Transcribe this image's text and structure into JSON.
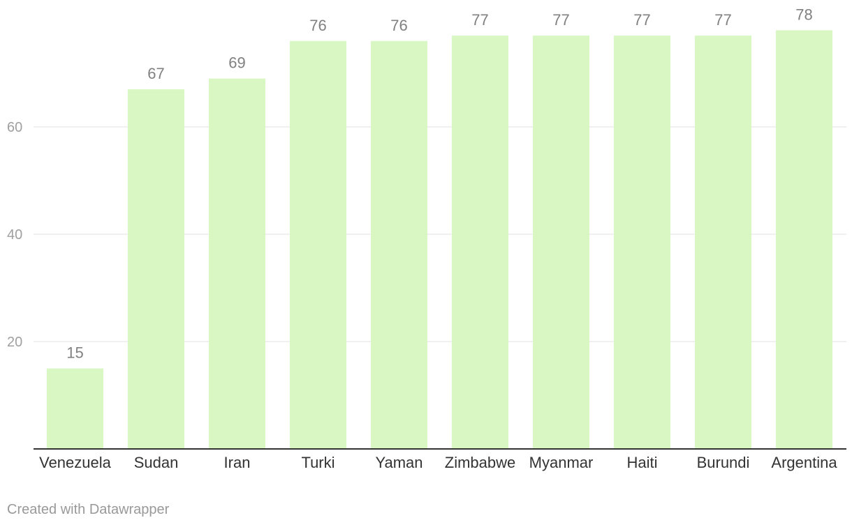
{
  "credit": "Created with Datawrapper",
  "chart_data": {
    "type": "bar",
    "categories": [
      "Venezuela",
      "Sudan",
      "Iran",
      "Turki",
      "Yaman",
      "Zimbabwe",
      "Myanmar",
      "Haiti",
      "Burundi",
      "Argentina"
    ],
    "values": [
      15,
      67,
      69,
      76,
      76,
      77,
      77,
      77,
      77,
      78
    ],
    "y_ticks": [
      20,
      40,
      60
    ],
    "ylim": [
      0,
      80
    ],
    "grid": true,
    "data_labels": true,
    "bar_color": "#d9f7c3",
    "grid_color": "#e0e0e0",
    "axis_color": "#333333",
    "tick_label_color": "#a0a0a0",
    "data_label_color": "#808080",
    "category_label_color": "#333333"
  }
}
